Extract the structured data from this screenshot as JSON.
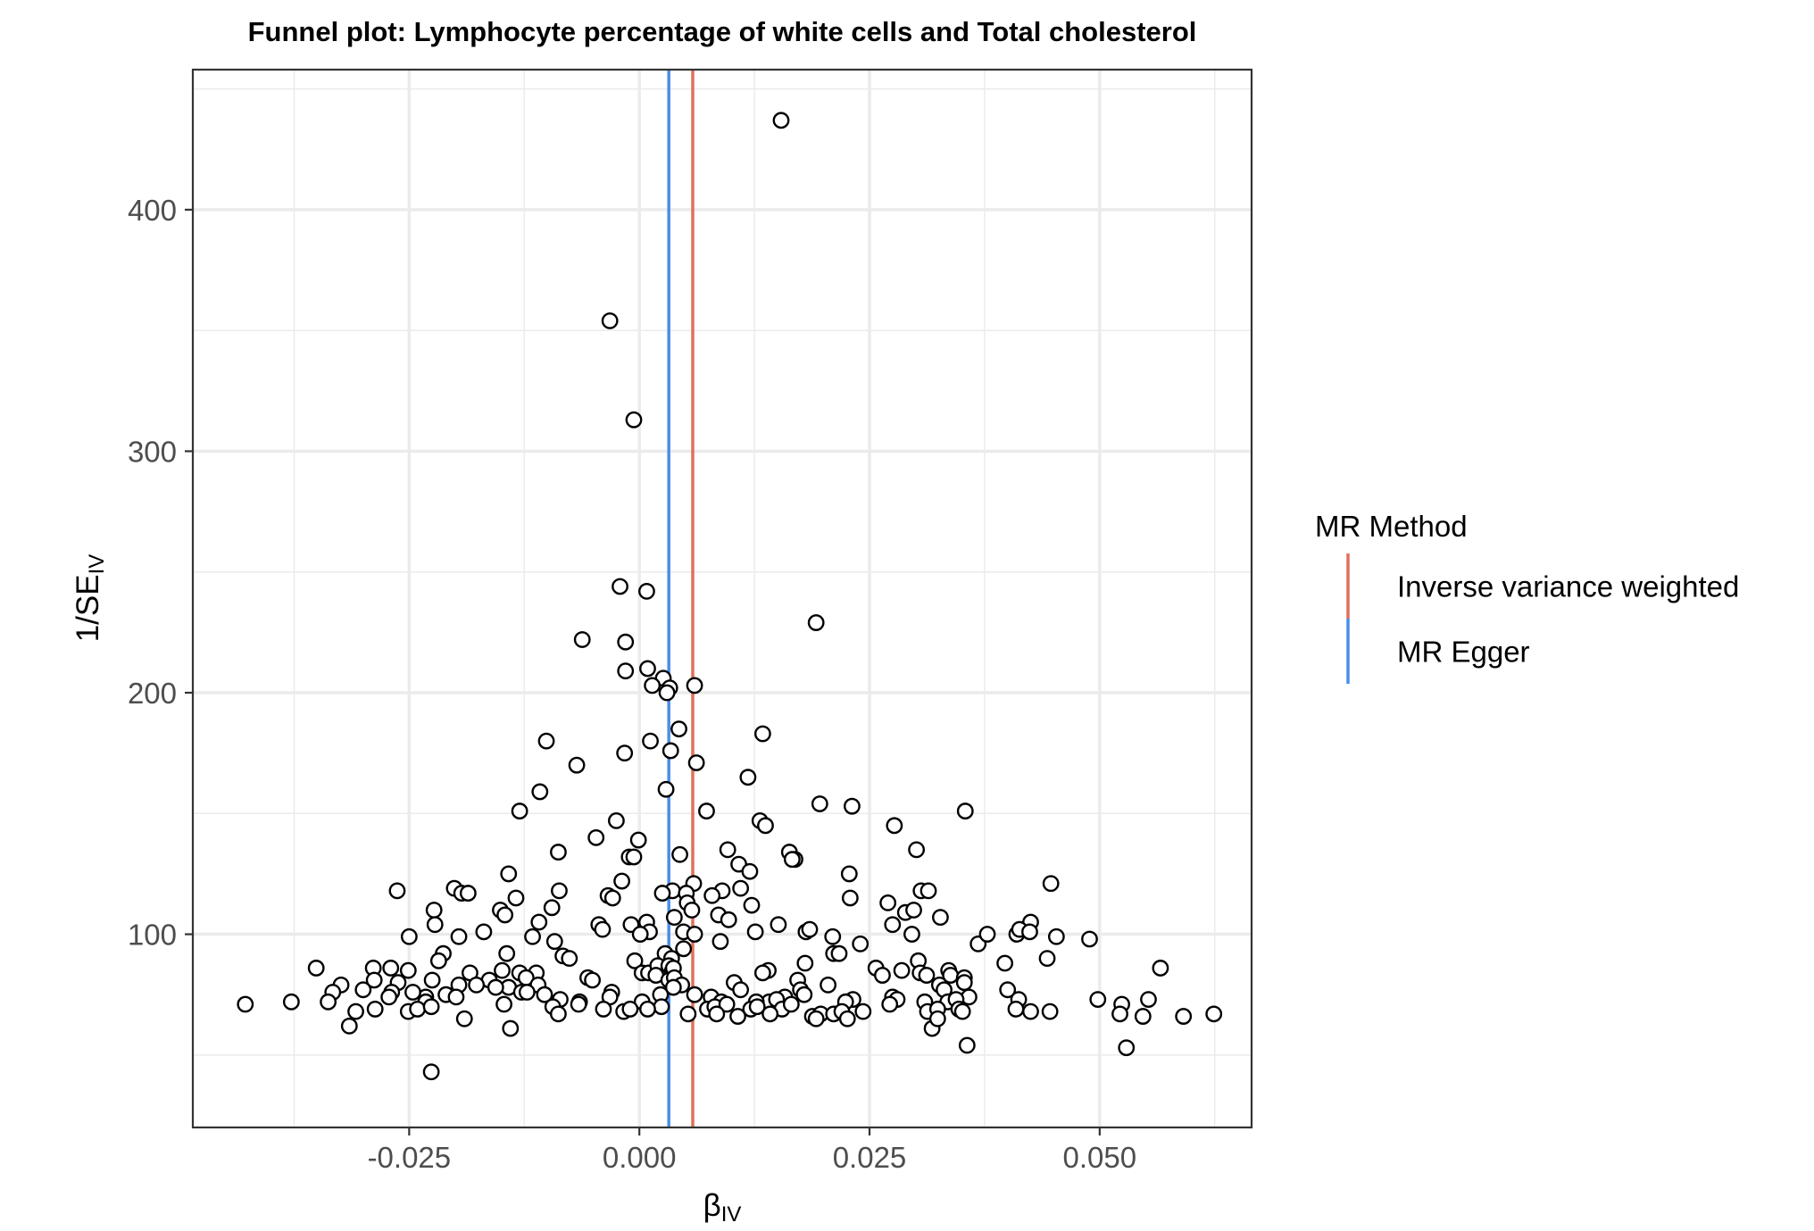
{
  "chart_data": {
    "type": "scatter",
    "title": "Funnel plot: Lymphocyte percentage of white cells and Total cholesterol",
    "xlabel": {
      "main": "β",
      "sub": "IV"
    },
    "ylabel": {
      "main": "1/SE",
      "sub": "IV"
    },
    "xlim": [
      -0.0485,
      0.0665
    ],
    "ylim": [
      20,
      458
    ],
    "x_ticks": [
      -0.025,
      0.0,
      0.025,
      0.05
    ],
    "x_tick_labels": [
      "-0.025",
      "0.000",
      "0.025",
      "0.050"
    ],
    "y_ticks": [
      100,
      200,
      300,
      400
    ],
    "y_tick_labels": [
      "100",
      "200",
      "300",
      "400"
    ],
    "grid": true,
    "legend": {
      "title": "MR Method",
      "position": "right",
      "entries": [
        {
          "label": "Inverse variance weighted",
          "color": "#E0705A"
        },
        {
          "label": "MR Egger",
          "color": "#4A8FEA"
        }
      ]
    },
    "vlines": [
      {
        "method": "MR Egger",
        "x": 0.0032,
        "color": "#4A8FEA"
      },
      {
        "method": "Inverse variance weighted",
        "x": 0.0058,
        "color": "#E0705A"
      }
    ],
    "points": [
      [
        0.0154,
        437
      ],
      [
        -0.0032,
        354
      ],
      [
        -0.0006,
        313
      ],
      [
        -0.0021,
        244
      ],
      [
        0.0008,
        242
      ],
      [
        0.0192,
        229
      ],
      [
        -0.0062,
        222
      ],
      [
        -0.0015,
        221
      ],
      [
        -0.0015,
        209
      ],
      [
        0.0009,
        210
      ],
      [
        0.0026,
        206
      ],
      [
        0.0014,
        203
      ],
      [
        0.0033,
        202
      ],
      [
        0.003,
        200
      ],
      [
        0.006,
        203
      ],
      [
        0.0043,
        185
      ],
      [
        0.0134,
        183
      ],
      [
        -0.0101,
        180
      ],
      [
        0.0012,
        180
      ],
      [
        0.0034,
        176
      ],
      [
        -0.0016,
        175
      ],
      [
        0.0062,
        171
      ],
      [
        -0.0068,
        170
      ],
      [
        0.0118,
        165
      ],
      [
        0.0029,
        160
      ],
      [
        -0.0108,
        159
      ],
      [
        0.0196,
        154
      ],
      [
        0.0231,
        153
      ],
      [
        -0.013,
        151
      ],
      [
        0.0073,
        151
      ],
      [
        0.0354,
        151
      ],
      [
        -0.0025,
        147
      ],
      [
        0.0131,
        147
      ],
      [
        0.0137,
        145
      ],
      [
        0.0277,
        145
      ],
      [
        -0.0047,
        140
      ],
      [
        -0.0001,
        139
      ],
      [
        0.0096,
        135
      ],
      [
        0.0301,
        135
      ],
      [
        -0.0088,
        134
      ],
      [
        0.0163,
        134
      ],
      [
        0.0044,
        133
      ],
      [
        0.0169,
        131
      ],
      [
        -0.0011,
        132
      ],
      [
        -0.0006,
        132
      ],
      [
        0.0166,
        131
      ],
      [
        0.0108,
        129
      ],
      [
        -0.0142,
        125
      ],
      [
        -0.0019,
        122
      ],
      [
        0.012,
        126
      ],
      [
        0.0228,
        125
      ],
      [
        0.0059,
        121
      ],
      [
        -0.0263,
        118
      ],
      [
        -0.0201,
        119
      ],
      [
        -0.0087,
        118
      ],
      [
        0.0036,
        118
      ],
      [
        0.0051,
        117
      ],
      [
        0.0025,
        117
      ],
      [
        0.009,
        118
      ],
      [
        0.011,
        119
      ],
      [
        0.0306,
        118
      ],
      [
        0.0314,
        118
      ],
      [
        0.0447,
        121
      ],
      [
        -0.0193,
        117
      ],
      [
        -0.0186,
        117
      ],
      [
        -0.0134,
        115
      ],
      [
        -0.0034,
        116
      ],
      [
        -0.0029,
        115
      ],
      [
        0.0079,
        116
      ],
      [
        0.0229,
        115
      ],
      [
        0.0052,
        113
      ],
      [
        0.0122,
        112
      ],
      [
        0.027,
        113
      ],
      [
        -0.0223,
        110
      ],
      [
        -0.0151,
        110
      ],
      [
        -0.0095,
        111
      ],
      [
        0.0057,
        110
      ],
      [
        0.0289,
        109
      ],
      [
        0.0298,
        110
      ],
      [
        -0.0146,
        108
      ],
      [
        0.0038,
        107
      ],
      [
        0.0086,
        108
      ],
      [
        0.0097,
        106
      ],
      [
        0.0327,
        107
      ],
      [
        -0.0222,
        104
      ],
      [
        -0.0109,
        105
      ],
      [
        -0.0044,
        104
      ],
      [
        -0.0009,
        104
      ],
      [
        0.0008,
        105
      ],
      [
        0.0151,
        104
      ],
      [
        0.0275,
        104
      ],
      [
        0.0425,
        105
      ],
      [
        -0.0169,
        101
      ],
      [
        -0.0116,
        99
      ],
      [
        -0.004,
        102
      ],
      [
        0.0011,
        101
      ],
      [
        0.0001,
        100
      ],
      [
        0.0048,
        101
      ],
      [
        0.006,
        100
      ],
      [
        0.0126,
        101
      ],
      [
        0.0181,
        101
      ],
      [
        0.0185,
        102
      ],
      [
        0.021,
        99
      ],
      [
        0.0296,
        100
      ],
      [
        0.041,
        100
      ],
      [
        0.0413,
        102
      ],
      [
        0.0424,
        101
      ],
      [
        -0.025,
        99
      ],
      [
        -0.0196,
        99
      ],
      [
        -0.0092,
        97
      ],
      [
        0.0088,
        97
      ],
      [
        0.024,
        96
      ],
      [
        0.0368,
        96
      ],
      [
        0.0378,
        100
      ],
      [
        0.0453,
        99
      ],
      [
        0.0489,
        98
      ],
      [
        -0.0213,
        92
      ],
      [
        -0.0144,
        92
      ],
      [
        -0.0083,
        91
      ],
      [
        -0.0076,
        90
      ],
      [
        0.0028,
        92
      ],
      [
        0.0035,
        90
      ],
      [
        0.0211,
        92
      ],
      [
        0.0217,
        92
      ],
      [
        0.0443,
        90
      ],
      [
        -0.027,
        86
      ],
      [
        -0.0351,
        86
      ],
      [
        -0.0289,
        86
      ],
      [
        -0.0251,
        85
      ],
      [
        -0.0218,
        89
      ],
      [
        -0.0184,
        84
      ],
      [
        -0.0149,
        85
      ],
      [
        -0.013,
        84
      ],
      [
        -0.0112,
        84
      ],
      [
        -0.0056,
        82
      ],
      [
        -0.0005,
        89
      ],
      [
        0.0003,
        84
      ],
      [
        0.001,
        84
      ],
      [
        0.002,
        87
      ],
      [
        0.0032,
        87
      ],
      [
        0.0036,
        85
      ],
      [
        0.0037,
        86
      ],
      [
        0.0048,
        94
      ],
      [
        0.014,
        85
      ],
      [
        0.018,
        88
      ],
      [
        0.0257,
        86
      ],
      [
        0.0285,
        85
      ],
      [
        0.0303,
        89
      ],
      [
        0.0305,
        84
      ],
      [
        0.0312,
        83
      ],
      [
        0.0336,
        85
      ],
      [
        0.0338,
        83
      ],
      [
        0.0353,
        82
      ],
      [
        0.0397,
        88
      ],
      [
        0.0566,
        86
      ],
      [
        -0.0324,
        79
      ],
      [
        -0.0288,
        81
      ],
      [
        -0.0262,
        80
      ],
      [
        -0.0225,
        81
      ],
      [
        -0.0196,
        79
      ],
      [
        -0.0163,
        81
      ],
      [
        -0.0123,
        82
      ],
      [
        -0.011,
        79
      ],
      [
        -0.0051,
        81
      ],
      [
        0.0018,
        83
      ],
      [
        0.0032,
        81
      ],
      [
        0.0038,
        82
      ],
      [
        0.0046,
        79
      ],
      [
        0.0103,
        80
      ],
      [
        0.0134,
        84
      ],
      [
        0.0172,
        81
      ],
      [
        0.0205,
        79
      ],
      [
        0.0264,
        83
      ],
      [
        0.0326,
        79
      ],
      [
        0.0353,
        80
      ],
      [
        -0.0333,
        76
      ],
      [
        -0.03,
        77
      ],
      [
        -0.0269,
        76
      ],
      [
        -0.0232,
        74
      ],
      [
        -0.021,
        75
      ],
      [
        -0.0177,
        79
      ],
      [
        -0.0142,
        78
      ],
      [
        -0.0128,
        76
      ],
      [
        -0.0103,
        75
      ],
      [
        -0.0065,
        72
      ],
      [
        -0.003,
        76
      ],
      [
        0.0003,
        72
      ],
      [
        0.0023,
        75
      ],
      [
        0.0037,
        78
      ],
      [
        0.006,
        75
      ],
      [
        0.0081,
        72
      ],
      [
        0.011,
        77
      ],
      [
        0.0141,
        72
      ],
      [
        0.0158,
        74
      ],
      [
        0.0175,
        77
      ],
      [
        0.0232,
        73
      ],
      [
        0.0275,
        74
      ],
      [
        0.028,
        73
      ],
      [
        0.0331,
        77
      ],
      [
        0.0358,
        74
      ],
      [
        0.04,
        77
      ],
      [
        -0.0428,
        71
      ],
      [
        -0.0378,
        72
      ],
      [
        -0.0338,
        72
      ],
      [
        -0.0272,
        74
      ],
      [
        -0.0246,
        76
      ],
      [
        -0.0232,
        72
      ],
      [
        -0.0199,
        74
      ],
      [
        -0.0156,
        78
      ],
      [
        -0.0122,
        76
      ],
      [
        -0.0086,
        73
      ],
      [
        -0.0032,
        74
      ],
      [
        -0.0017,
        68
      ],
      [
        0.0024,
        70
      ],
      [
        0.0078,
        74
      ],
      [
        0.0089,
        72
      ],
      [
        0.0127,
        72
      ],
      [
        0.0149,
        73
      ],
      [
        0.0179,
        75
      ],
      [
        0.0224,
        72
      ],
      [
        0.0272,
        71
      ],
      [
        0.031,
        72
      ],
      [
        0.0335,
        72
      ],
      [
        0.0344,
        73
      ],
      [
        0.0412,
        73
      ],
      [
        0.0498,
        73
      ],
      [
        0.0524,
        71
      ],
      [
        0.0553,
        73
      ],
      [
        -0.0308,
        68
      ],
      [
        -0.0287,
        69
      ],
      [
        -0.0251,
        68
      ],
      [
        -0.0241,
        69
      ],
      [
        -0.0226,
        70
      ],
      [
        -0.0147,
        71
      ],
      [
        -0.0094,
        70
      ],
      [
        -0.0066,
        71
      ],
      [
        -0.0039,
        69
      ],
      [
        -0.001,
        69
      ],
      [
        0.0009,
        69
      ],
      [
        0.0074,
        69
      ],
      [
        0.0082,
        70
      ],
      [
        0.0095,
        71
      ],
      [
        0.0121,
        69
      ],
      [
        0.0128,
        70
      ],
      [
        0.0155,
        69
      ],
      [
        0.0165,
        71
      ],
      [
        0.0188,
        66
      ],
      [
        0.0197,
        67
      ],
      [
        0.0211,
        67
      ],
      [
        0.022,
        68
      ],
      [
        0.0243,
        68
      ],
      [
        0.0313,
        68
      ],
      [
        0.0324,
        69
      ],
      [
        0.0347,
        69
      ],
      [
        0.0351,
        68
      ],
      [
        0.0409,
        69
      ],
      [
        0.0425,
        68
      ],
      [
        0.0446,
        68
      ],
      [
        0.0522,
        67
      ],
      [
        0.0547,
        66
      ],
      [
        0.0591,
        66
      ],
      [
        0.0624,
        67
      ],
      [
        -0.0315,
        62
      ],
      [
        -0.019,
        65
      ],
      [
        -0.014,
        61
      ],
      [
        -0.0088,
        67
      ],
      [
        0.0053,
        67
      ],
      [
        0.0084,
        67
      ],
      [
        0.0107,
        66
      ],
      [
        0.0142,
        67
      ],
      [
        0.0192,
        65
      ],
      [
        0.0226,
        65
      ],
      [
        0.0318,
        61
      ],
      [
        0.0324,
        65
      ],
      [
        0.0356,
        54
      ],
      [
        0.0529,
        53
      ],
      [
        -0.0226,
        43
      ]
    ]
  }
}
